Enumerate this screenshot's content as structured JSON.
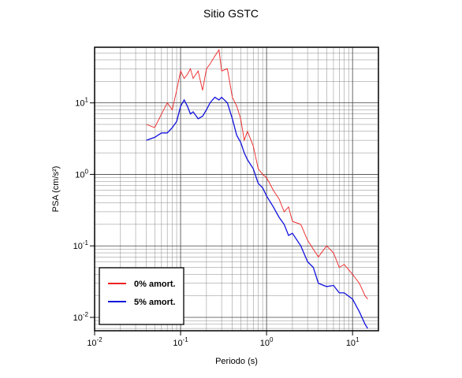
{
  "chart_data": {
    "type": "line",
    "title": "Sitio GSTC",
    "xlabel": "Periodo (s)",
    "ylabel": "PSA (cm/s²)",
    "xscale": "log",
    "yscale": "log",
    "grid": true,
    "legend": "lower left",
    "xlim": [
      0.01,
      20
    ],
    "ylim": [
      0.0065,
      60
    ],
    "xticks": [
      {
        "value": 0.01,
        "label": "10^-2"
      },
      {
        "value": 0.1,
        "label": "10^-1"
      },
      {
        "value": 1,
        "label": "10^0"
      },
      {
        "value": 10,
        "label": "10^1"
      }
    ],
    "yticks": [
      {
        "value": 0.01,
        "label": "10^-2"
      },
      {
        "value": 0.1,
        "label": "10^-1"
      },
      {
        "value": 1,
        "label": "10^0"
      },
      {
        "value": 10,
        "label": "10^1"
      }
    ],
    "xminorticks": [
      0.02,
      0.03,
      0.04,
      0.05,
      0.06,
      0.07,
      0.08,
      0.09,
      0.2,
      0.3,
      0.4,
      0.5,
      0.6,
      0.7,
      0.8,
      0.9,
      2,
      3,
      4,
      5,
      6,
      7,
      8,
      9
    ],
    "yminorticks": [
      0.007,
      0.008,
      0.009,
      0.02,
      0.03,
      0.04,
      0.05,
      0.06,
      0.07,
      0.08,
      0.09,
      0.2,
      0.3,
      0.4,
      0.5,
      0.6,
      0.7,
      0.8,
      0.9,
      2,
      3,
      4,
      5,
      6,
      7,
      8,
      9,
      20,
      30,
      40,
      50
    ],
    "x": [
      0.04,
      0.05,
      0.06,
      0.07,
      0.08,
      0.09,
      0.1,
      0.11,
      0.12,
      0.13,
      0.14,
      0.16,
      0.18,
      0.2,
      0.22,
      0.25,
      0.28,
      0.3,
      0.35,
      0.4,
      0.45,
      0.5,
      0.55,
      0.6,
      0.7,
      0.8,
      0.9,
      1.0,
      1.2,
      1.4,
      1.6,
      1.8,
      2.0,
      2.5,
      3,
      3.5,
      4,
      5,
      6,
      7,
      8,
      10,
      12,
      14,
      15
    ],
    "series": [
      {
        "name": "0% amort.",
        "color": "#ee2222",
        "values": [
          5,
          4.5,
          7,
          10,
          8,
          15,
          28,
          22,
          25,
          30,
          22,
          28,
          15,
          30,
          35,
          45,
          55,
          28,
          30,
          12,
          9,
          6,
          3,
          4,
          2.5,
          1.2,
          1.0,
          0.9,
          0.6,
          0.45,
          0.3,
          0.35,
          0.22,
          0.2,
          0.12,
          0.09,
          0.07,
          0.1,
          0.08,
          0.05,
          0.055,
          0.04,
          0.03,
          0.02,
          0.018
        ]
      },
      {
        "name": "5% amort.",
        "color": "#1111dd",
        "values": [
          3.0,
          3.3,
          3.8,
          3.8,
          4.5,
          5.5,
          9,
          11,
          9,
          7,
          7.5,
          6,
          6.5,
          8,
          10,
          12,
          11,
          12,
          10,
          6,
          3.5,
          2.8,
          2.0,
          1.6,
          1.2,
          0.75,
          0.65,
          0.5,
          0.35,
          0.25,
          0.2,
          0.14,
          0.15,
          0.1,
          0.06,
          0.05,
          0.03,
          0.027,
          0.028,
          0.022,
          0.022,
          0.018,
          0.012,
          0.008,
          0.007
        ]
      }
    ]
  }
}
